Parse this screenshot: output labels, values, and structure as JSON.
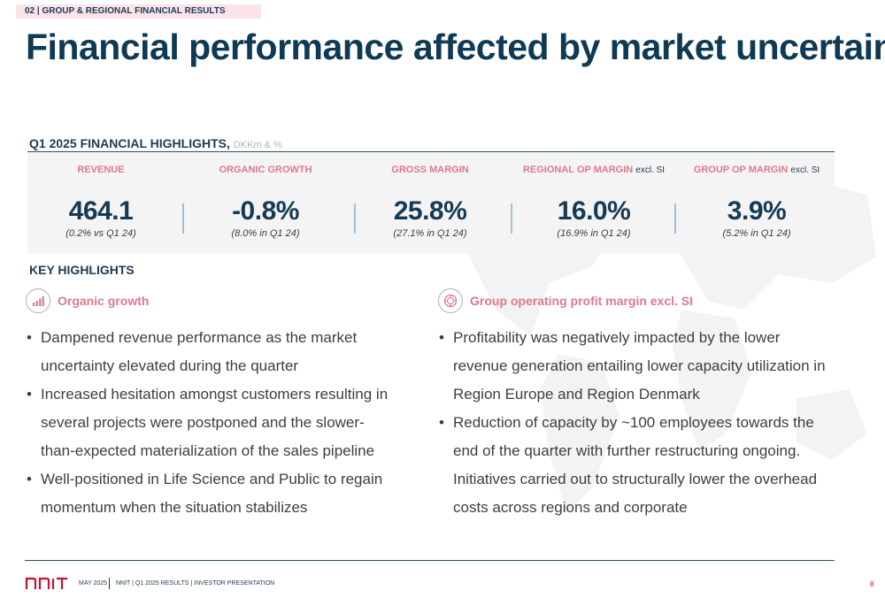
{
  "section_tag": "02 | GROUP & REGIONAL FINANCIAL RESULTS",
  "title": "Financial performance affected by market uncertainty",
  "highlights": {
    "heading": "Q1 2025 FINANCIAL HIGHLIGHTS,",
    "unit": "DKKm & %",
    "kpis": [
      {
        "label": "REVENUE",
        "suffix": "",
        "value": "464.1",
        "compare": "(0.2% vs Q1 24)"
      },
      {
        "label": "ORGANIC GROWTH",
        "suffix": "",
        "value": "-0.8%",
        "compare": "(8.0% in Q1 24)"
      },
      {
        "label": "GROSS MARGIN",
        "suffix": "",
        "value": "25.8%",
        "compare": "(27.1% in Q1 24)"
      },
      {
        "label": "REGIONAL OP MARGIN",
        "suffix": "excl. SI",
        "value": "16.0%",
        "compare": "(16.9% in Q1 24)"
      },
      {
        "label": "GROUP OP MARGIN",
        "suffix": "excl. SI",
        "value": "3.9%",
        "compare": "(5.2% in Q1 24)"
      }
    ]
  },
  "key_highlights": {
    "heading": "KEY HIGHLIGHTS",
    "left": {
      "icon": "bar-chart-icon",
      "title": "Organic growth",
      "bullets": [
        "Dampened revenue performance as the market uncertainty elevated during the quarter",
        "Increased hesitation amongst customers resulting in several projects were postponed and the slower-than-expected materialization of the sales pipeline",
        "Well-positioned in Life Science and Public to regain momentum when the situation stabilizes"
      ]
    },
    "right": {
      "icon": "profit-margin-icon",
      "title": "Group operating profit margin excl. SI",
      "bullets": [
        "Profitability was negatively impacted by the lower revenue generation entailing lower capacity utilization in Region Europe and Region Denmark",
        "Reduction of capacity by ~100 employees towards the end of the quarter with further restructuring ongoing. Initiatives carried out to structurally lower the overhead costs across regions and corporate"
      ]
    }
  },
  "footer": {
    "logo": "NNIT",
    "date": "MAY 2025",
    "text": "NNIT | Q1 2025 RESULTS | INVESTOR PRESENTATION",
    "page": "8"
  },
  "colors": {
    "navy": "#0f3a55",
    "pink": "#e0788b",
    "logo_red": "#c8102e",
    "kpi_bg": "#f4f4f5"
  }
}
